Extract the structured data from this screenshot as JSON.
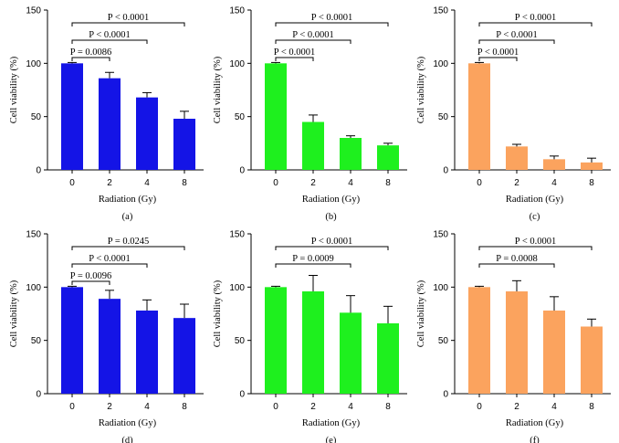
{
  "chart_data": [
    {
      "type": "bar",
      "panel_label": "(a)",
      "color": "#1414e6",
      "categories": [
        "0",
        "2",
        "4",
        "8"
      ],
      "values": [
        100,
        86,
        68,
        48
      ],
      "errors": [
        0.8,
        5.5,
        4.5,
        7
      ],
      "xlabel": "Radiation (Gy)",
      "ylabel": "Cell viability (%)",
      "ylim": [
        0,
        150
      ],
      "yticks": [
        "0",
        "50",
        "100",
        "150"
      ],
      "comparisons": [
        {
          "from": "0",
          "to": "2",
          "label": "P = 0.0086"
        },
        {
          "from": "0",
          "to": "4",
          "label": "P < 0.0001"
        },
        {
          "from": "0",
          "to": "8",
          "label": "P < 0.0001"
        }
      ]
    },
    {
      "type": "bar",
      "panel_label": "(b)",
      "color": "#1ef01e",
      "categories": [
        "0",
        "2",
        "4",
        "8"
      ],
      "values": [
        100,
        45,
        30,
        23
      ],
      "errors": [
        0.8,
        6.5,
        2,
        2
      ],
      "xlabel": "Radiation (Gy)",
      "ylabel": "Cell viability (%)",
      "ylim": [
        0,
        150
      ],
      "yticks": [
        "0",
        "50",
        "100",
        "150"
      ],
      "comparisons": [
        {
          "from": "0",
          "to": "2",
          "label": "P < 0.0001"
        },
        {
          "from": "0",
          "to": "4",
          "label": "P < 0.0001"
        },
        {
          "from": "0",
          "to": "8",
          "label": "P < 0.0001"
        }
      ]
    },
    {
      "type": "bar",
      "panel_label": "(c)",
      "color": "#fba35e",
      "categories": [
        "0",
        "2",
        "4",
        "8"
      ],
      "values": [
        100,
        22,
        10,
        7
      ],
      "errors": [
        0.8,
        2,
        3,
        4
      ],
      "xlabel": "Radiation (Gy)",
      "ylabel": "Cell viability (%)",
      "ylim": [
        0,
        150
      ],
      "yticks": [
        "0",
        "50",
        "100",
        "150"
      ],
      "comparisons": [
        {
          "from": "0",
          "to": "2",
          "label": "P < 0.0001"
        },
        {
          "from": "0",
          "to": "4",
          "label": "P < 0.0001"
        },
        {
          "from": "0",
          "to": "8",
          "label": "P < 0.0001"
        }
      ]
    },
    {
      "type": "bar",
      "panel_label": "(d)",
      "color": "#1414e6",
      "categories": [
        "0",
        "2",
        "4",
        "8"
      ],
      "values": [
        100,
        89,
        78,
        71
      ],
      "errors": [
        0.8,
        8,
        10,
        13
      ],
      "xlabel": "Radiation (Gy)",
      "ylabel": "Cell viability (%)",
      "ylim": [
        0,
        150
      ],
      "yticks": [
        "0",
        "50",
        "100",
        "150"
      ],
      "comparisons": [
        {
          "from": "0",
          "to": "2",
          "label": "P = 0.0096"
        },
        {
          "from": "0",
          "to": "4",
          "label": "P < 0.0001"
        },
        {
          "from": "0",
          "to": "8",
          "label": "P = 0.0245"
        }
      ]
    },
    {
      "type": "bar",
      "panel_label": "(e)",
      "color": "#1ef01e",
      "categories": [
        "0",
        "2",
        "4",
        "8"
      ],
      "values": [
        100,
        96,
        76,
        66
      ],
      "errors": [
        0.8,
        15,
        16,
        16
      ],
      "xlabel": "Radiation (Gy)",
      "ylabel": "Cell viability (%)",
      "ylim": [
        0,
        150
      ],
      "yticks": [
        "0",
        "50",
        "100",
        "150"
      ],
      "comparisons": [
        {
          "from": "0",
          "to": "4",
          "label": "P = 0.0009"
        },
        {
          "from": "0",
          "to": "8",
          "label": "P < 0.0001"
        }
      ]
    },
    {
      "type": "bar",
      "panel_label": "(f)",
      "color": "#fba35e",
      "categories": [
        "0",
        "2",
        "4",
        "8"
      ],
      "values": [
        100,
        96,
        78,
        63
      ],
      "errors": [
        0.8,
        10,
        13,
        7
      ],
      "xlabel": "Radiation (Gy)",
      "ylabel": "Cell viability (%)",
      "ylim": [
        0,
        150
      ],
      "yticks": [
        "0",
        "50",
        "100",
        "150"
      ],
      "comparisons": [
        {
          "from": "0",
          "to": "4",
          "label": "P = 0.0008"
        },
        {
          "from": "0",
          "to": "8",
          "label": "P < 0.0001"
        }
      ]
    }
  ]
}
